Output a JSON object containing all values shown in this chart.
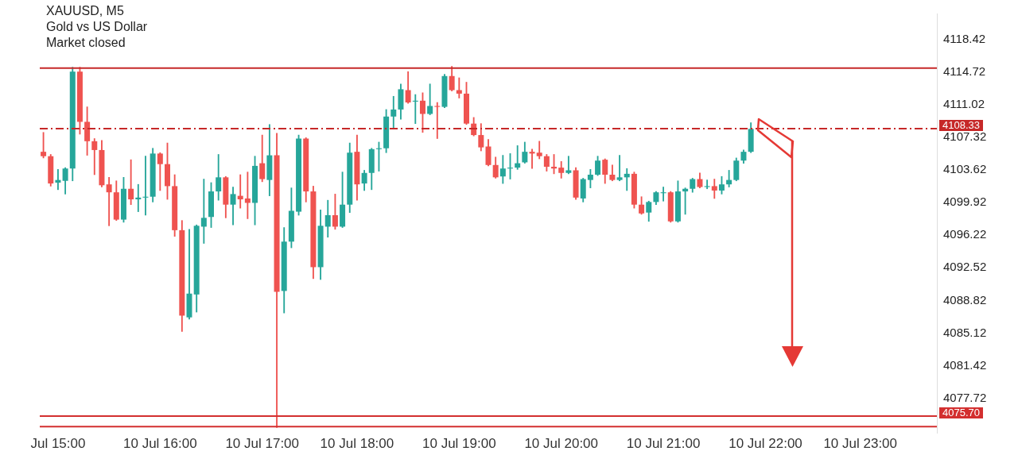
{
  "chart_data": {
    "type": "candlestick",
    "title": "XAUUSD, M5",
    "subtitle": "Gold vs US Dollar",
    "annotations": [
      "Market closed"
    ],
    "categories": [
      null,
      null,
      "Jul 15:00",
      null,
      null,
      null,
      null,
      null,
      null,
      null,
      null,
      null,
      null,
      null,
      null,
      null,
      "10 Jul 16:00",
      null,
      null,
      null,
      null,
      null,
      null,
      null,
      null,
      null,
      null,
      null,
      null,
      null,
      "10 Jul 17:00",
      null,
      null,
      null,
      null,
      null,
      null,
      null,
      null,
      null,
      null,
      null,
      null,
      "10 Jul 18:00",
      null,
      null,
      null,
      null,
      null,
      null,
      null,
      null,
      null,
      null,
      null,
      null,
      null,
      "10 Jul 19:00",
      null,
      null,
      null,
      null,
      null,
      null,
      null,
      null,
      null,
      null,
      null,
      null,
      null,
      "10 Jul 20:00",
      null,
      null,
      null,
      null,
      null,
      null,
      null,
      null,
      null,
      null,
      null,
      null,
      null,
      "10 Jul 21:00",
      null,
      null,
      null,
      null,
      null,
      null,
      null,
      null,
      null,
      null,
      null,
      null,
      null,
      "10 Jul 22:00",
      null,
      null,
      null,
      null,
      null,
      null,
      null,
      null,
      null,
      null,
      null,
      null,
      "10 Jul 23:00",
      null,
      null,
      null,
      null,
      null,
      null,
      null,
      null,
      null,
      null
    ],
    "ohlc": [
      [
        4105.7,
        4107.9,
        4105.0,
        4105.2
      ],
      [
        4105.2,
        4105.4,
        4101.8,
        4102.1
      ],
      [
        4102.2,
        4103.7,
        4101.4,
        4102.5
      ],
      [
        4102.4,
        4103.9,
        4100.9,
        4103.8
      ],
      [
        4103.8,
        4115.3,
        4102.4,
        4114.8
      ],
      [
        4114.8,
        4115.3,
        4107.7,
        4109.1
      ],
      [
        4109.1,
        4110.8,
        4105.3,
        4106.9
      ],
      [
        4106.9,
        4107.2,
        4103.1,
        4105.9
      ],
      [
        4105.9,
        4107.0,
        4101.7,
        4101.9
      ],
      [
        4102.0,
        4102.8,
        4097.3,
        4101.1
      ],
      [
        4101.1,
        4102.4,
        4097.9,
        4098.0
      ],
      [
        4098.0,
        4102.8,
        4097.7,
        4101.5
      ],
      [
        4101.5,
        4104.8,
        4099.7,
        4100.3
      ],
      [
        4100.3,
        4102.0,
        4098.9,
        4100.5
      ],
      [
        4100.5,
        4105.2,
        4098.5,
        4100.6
      ],
      [
        4100.6,
        4106.1,
        4100.0,
        4105.5
      ],
      [
        4105.5,
        4105.6,
        4101.3,
        4104.3
      ],
      [
        4104.3,
        4106.7,
        4100.3,
        4101.8
      ],
      [
        4101.8,
        4103.1,
        4096.1,
        4096.8
      ],
      [
        4096.8,
        4097.9,
        4085.3,
        4087.1
      ],
      [
        4086.9,
        4096.9,
        4086.7,
        4089.6
      ],
      [
        4089.5,
        4097.4,
        4087.5,
        4097.3
      ],
      [
        4097.2,
        4102.6,
        4095.3,
        4098.2
      ],
      [
        4098.3,
        4102.2,
        4097.1,
        4101.2
      ],
      [
        4101.2,
        4105.4,
        4100.2,
        4102.8
      ],
      [
        4102.8,
        4102.9,
        4098.2,
        4099.7
      ],
      [
        4099.7,
        4101.7,
        4097.4,
        4100.9
      ],
      [
        4100.7,
        4103.1,
        4099.3,
        4100.3
      ],
      [
        4100.4,
        4103.4,
        4098.1,
        4099.9
      ],
      [
        4099.9,
        4105.2,
        4097.4,
        4104.1
      ],
      [
        4104.4,
        4107.6,
        4102.3,
        4102.6
      ],
      [
        4102.5,
        4108.8,
        4100.7,
        4105.3
      ],
      [
        4105.3,
        4107.8,
        4074.4,
        4089.8
      ],
      [
        4089.9,
        4097.1,
        4087.4,
        4095.5
      ],
      [
        4095.5,
        4101.6,
        4094.8,
        4099.0
      ],
      [
        4098.9,
        4107.6,
        4098.5,
        4107.2
      ],
      [
        4107.2,
        4107.3,
        4100.0,
        4101.2
      ],
      [
        4101.2,
        4101.8,
        4091.3,
        4092.6
      ],
      [
        4092.6,
        4099.1,
        4091.2,
        4097.3
      ],
      [
        4097.2,
        4100.2,
        4096.0,
        4098.5
      ],
      [
        4098.5,
        4100.9,
        4096.9,
        4097.2
      ],
      [
        4097.2,
        4103.4,
        4097.1,
        4099.7
      ],
      [
        4099.7,
        4106.7,
        4098.8,
        4105.6
      ],
      [
        4105.7,
        4107.6,
        4100.2,
        4102.0
      ],
      [
        4102.1,
        4103.6,
        4101.3,
        4103.3
      ],
      [
        4103.3,
        4106.1,
        4101.4,
        4106.0
      ],
      [
        4106.0,
        4106.8,
        4103.5,
        4106.1
      ],
      [
        4106.1,
        4110.5,
        4105.6,
        4109.7
      ],
      [
        4109.7,
        4112.0,
        4108.3,
        4110.5
      ],
      [
        4110.5,
        4113.4,
        4109.4,
        4112.8
      ],
      [
        4112.7,
        4114.8,
        4111.2,
        4111.3
      ],
      [
        4111.4,
        4112.2,
        4108.9,
        4111.5
      ],
      [
        4111.5,
        4112.4,
        4107.9,
        4110.0
      ],
      [
        4110.0,
        4113.4,
        4109.9,
        4110.9
      ],
      [
        4110.9,
        4111.3,
        4107.2,
        4110.8
      ],
      [
        4110.8,
        4114.5,
        4110.7,
        4114.3
      ],
      [
        4114.3,
        4115.4,
        4112.6,
        4112.7
      ],
      [
        4112.7,
        4114.1,
        4111.8,
        4112.3
      ],
      [
        4112.3,
        4113.6,
        4108.8,
        4108.9
      ],
      [
        4108.9,
        4109.6,
        4107.5,
        4107.6
      ],
      [
        4107.6,
        4108.9,
        4105.8,
        4106.2
      ],
      [
        4106.3,
        4107.1,
        4104.1,
        4104.2
      ],
      [
        4104.2,
        4105.1,
        4102.7,
        4102.8
      ],
      [
        4102.9,
        4105.3,
        4102.1,
        4103.8
      ],
      [
        4103.8,
        4105.5,
        4102.6,
        4103.9
      ],
      [
        4103.9,
        4106.4,
        4103.7,
        4104.4
      ],
      [
        4104.5,
        4106.8,
        4104.4,
        4105.7
      ],
      [
        4105.7,
        4106.0,
        4103.8,
        4105.5
      ],
      [
        4105.6,
        4106.9,
        4104.9,
        4105.2
      ],
      [
        4105.2,
        4105.4,
        4103.5,
        4104.0
      ],
      [
        4104.0,
        4105.4,
        4103.2,
        4103.8
      ],
      [
        4103.9,
        4104.6,
        4102.7,
        4103.3
      ],
      [
        4103.3,
        4105.2,
        4103.2,
        4103.6
      ],
      [
        4103.6,
        4103.9,
        4100.3,
        4100.5
      ],
      [
        4100.4,
        4102.7,
        4100.0,
        4102.6
      ],
      [
        4102.5,
        4103.7,
        4101.6,
        4103.1
      ],
      [
        4103.1,
        4105.2,
        4103.0,
        4104.7
      ],
      [
        4104.8,
        4104.9,
        4102.1,
        4103.1
      ],
      [
        4103.1,
        4104.2,
        4102.4,
        4102.5
      ],
      [
        4102.5,
        4105.3,
        4102.4,
        4102.8
      ],
      [
        4102.8,
        4103.8,
        4101.3,
        4103.2
      ],
      [
        4103.2,
        4103.4,
        4099.3,
        4099.7
      ],
      [
        4099.7,
        4100.6,
        4098.6,
        4098.7
      ],
      [
        4098.8,
        4100.1,
        4097.8,
        4100.0
      ],
      [
        4100.0,
        4101.2,
        4099.7,
        4101.1
      ],
      [
        4101.0,
        4101.7,
        4100.1,
        4101.1
      ],
      [
        4101.1,
        4101.2,
        4097.7,
        4097.8
      ],
      [
        4097.8,
        4102.4,
        4097.7,
        4101.2
      ],
      [
        4101.2,
        4101.6,
        4098.6,
        4101.5
      ],
      [
        4101.5,
        4102.7,
        4101.1,
        4102.6
      ],
      [
        4102.6,
        4103.3,
        4101.6,
        4101.7
      ],
      [
        4101.7,
        4102.5,
        4101.5,
        4101.8
      ],
      [
        4101.8,
        4102.6,
        4100.4,
        4101.3
      ],
      [
        4101.3,
        4102.9,
        4100.9,
        4102.0
      ],
      [
        4102.0,
        4103.6,
        4101.7,
        4102.5
      ],
      [
        4102.5,
        4105.0,
        4102.4,
        4104.7
      ],
      [
        4104.7,
        4105.9,
        4104.4,
        4105.7
      ],
      [
        4105.7,
        4109.0,
        4105.6,
        4108.3
      ],
      null,
      null,
      null,
      null,
      null,
      null,
      null,
      null,
      null,
      null,
      null,
      null,
      null,
      null,
      null,
      null,
      null,
      null,
      null,
      null,
      null,
      null,
      null,
      null,
      null
    ],
    "colors": [
      "#ef5350",
      "#ef5350",
      "#26a69a",
      "#26a69a",
      "#26a69a",
      "#ef5350",
      "#ef5350",
      "#ef5350",
      "#ef5350",
      "#ef5350",
      "#ef5350",
      "#26a69a",
      "#ef5350",
      "#26a69a",
      "#26a69a",
      "#26a69a",
      "#ef5350",
      "#ef5350",
      "#ef5350",
      "#ef5350",
      "#26a69a",
      "#26a69a",
      "#26a69a",
      "#26a69a",
      "#26a69a",
      "#ef5350",
      "#26a69a",
      "#ef5350",
      "#ef5350",
      "#26a69a",
      "#ef5350",
      "#26a69a",
      "#ef5350",
      "#26a69a",
      "#26a69a",
      "#26a69a",
      "#ef5350",
      "#ef5350",
      "#26a69a",
      "#26a69a",
      "#ef5350",
      "#26a69a",
      "#26a69a",
      "#ef5350",
      "#26a69a",
      "#26a69a",
      "#26a69a",
      "#26a69a",
      "#26a69a",
      "#26a69a",
      "#ef5350",
      "#26a69a",
      "#ef5350",
      "#26a69a",
      "#ef5350",
      "#26a69a",
      "#ef5350",
      "#ef5350",
      "#ef5350",
      "#ef5350",
      "#ef5350",
      "#ef5350",
      "#ef5350",
      "#26a69a",
      "#26a69a",
      "#26a69a",
      "#26a69a",
      "#ef5350",
      "#ef5350",
      "#ef5350",
      "#ef5350",
      "#ef5350",
      "#26a69a",
      "#ef5350",
      "#26a69a",
      "#26a69a",
      "#26a69a",
      "#ef5350",
      "#ef5350",
      "#26a69a",
      "#26a69a",
      "#ef5350",
      "#ef5350",
      "#26a69a",
      "#26a69a",
      "#26a69a",
      "#ef5350",
      "#26a69a",
      "#26a69a",
      "#26a69a",
      "#ef5350",
      "#26a69a",
      "#ef5350",
      "#26a69a",
      "#26a69a",
      "#26a69a",
      "#26a69a",
      "#26a69a",
      null,
      null,
      null,
      null,
      null,
      null,
      null,
      null,
      null,
      null,
      null,
      null,
      null,
      null,
      null,
      null,
      null,
      null,
      null,
      null,
      null,
      null,
      null,
      null,
      null
    ],
    "ylim": [
      4073.8,
      4121.4
    ],
    "yticks": [
      4077.72,
      4081.42,
      4085.12,
      4088.82,
      4092.52,
      4096.22,
      4099.92,
      4103.62,
      4107.32,
      4111.02,
      4114.72,
      4118.42
    ],
    "ref_lines": [
      {
        "axis": "y",
        "value": 4115.2,
        "color": "#c62828",
        "line_style": "solid"
      },
      {
        "axis": "y",
        "value": 4108.33,
        "label": "4108.33",
        "color": "#c62828",
        "line_style": "dashed"
      },
      {
        "axis": "y",
        "value": 4075.7,
        "label": "4075.70",
        "color": "#d32f2f",
        "line_style": "solid"
      },
      {
        "axis": "y",
        "value": 4074.5,
        "color": "#d32f2f",
        "line_style": "solid"
      }
    ],
    "grid": false,
    "legend": false
  }
}
